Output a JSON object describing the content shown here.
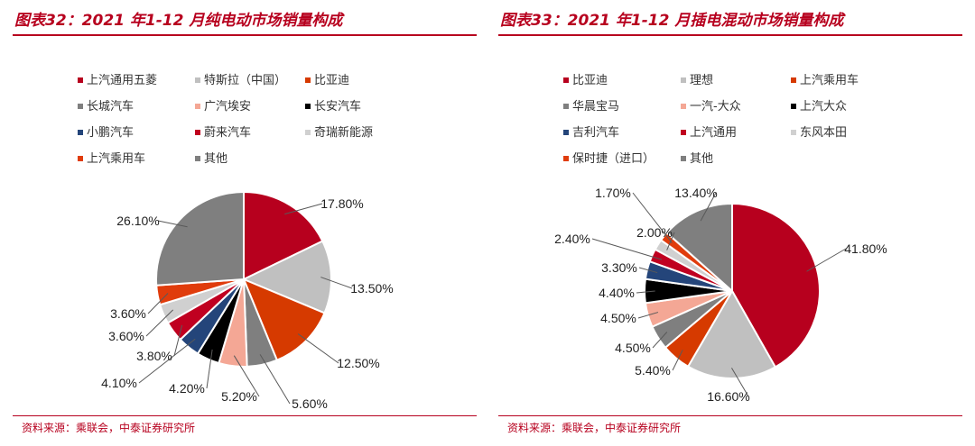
{
  "panels": [
    {
      "title": "图表32：2021 年1-12 月纯电动市场销量构成",
      "source": "资料来源：乘联会，中泰证券研究所",
      "legend": [
        {
          "label": "上汽通用五菱",
          "color": "#b7001e"
        },
        {
          "label": "特斯拉（中国）",
          "color": "#c0c0c0"
        },
        {
          "label": "比亚迪",
          "color": "#d63a00"
        },
        {
          "label": "长城汽车",
          "color": "#7f7f7f"
        },
        {
          "label": "广汽埃安",
          "color": "#f4a795"
        },
        {
          "label": "长安汽车",
          "color": "#000000"
        },
        {
          "label": "小鹏汽车",
          "color": "#24457a"
        },
        {
          "label": "蔚来汽车",
          "color": "#c00020"
        },
        {
          "label": "奇瑞新能源",
          "color": "#d0d0d0"
        },
        {
          "label": "上汽乘用车",
          "color": "#e03c0c"
        },
        {
          "label": "其他",
          "color": "#7f7f7f"
        }
      ],
      "chart_data": {
        "type": "pie",
        "title": "",
        "slices": [
          {
            "name": "上汽通用五菱",
            "value": 17.8,
            "label": "17.80%",
            "color": "#b7001e"
          },
          {
            "name": "特斯拉（中国）",
            "value": 13.5,
            "label": "13.50%",
            "color": "#c0c0c0"
          },
          {
            "name": "比亚迪",
            "value": 12.5,
            "label": "12.50%",
            "color": "#d63a00"
          },
          {
            "name": "长城汽车",
            "value": 5.6,
            "label": "5.60%",
            "color": "#7f7f7f"
          },
          {
            "name": "广汽埃安",
            "value": 5.2,
            "label": "5.20%",
            "color": "#f4a795"
          },
          {
            "name": "长安汽车",
            "value": 4.2,
            "label": "4.20%",
            "color": "#000000"
          },
          {
            "name": "小鹏汽车",
            "value": 4.1,
            "label": "4.10%",
            "color": "#24457a"
          },
          {
            "name": "蔚来汽车",
            "value": 3.8,
            "label": "3.80%",
            "color": "#c00020"
          },
          {
            "name": "奇瑞新能源",
            "value": 3.6,
            "label": "3.60%",
            "color": "#d0d0d0"
          },
          {
            "name": "上汽乘用车",
            "value": 3.6,
            "label": "3.60%",
            "color": "#e03c0c"
          },
          {
            "name": "其他",
            "value": 26.1,
            "label": "26.10%",
            "color": "#7f7f7f"
          }
        ]
      }
    },
    {
      "title": "图表33：2021 年1-12 月插电混动市场销量构成",
      "source": "资料来源：乘联会，中泰证券研究所",
      "legend": [
        {
          "label": "比亚迪",
          "color": "#b7001e"
        },
        {
          "label": "理想",
          "color": "#c0c0c0"
        },
        {
          "label": "上汽乘用车",
          "color": "#d63a00"
        },
        {
          "label": "华晨宝马",
          "color": "#7f7f7f"
        },
        {
          "label": "一汽-大众",
          "color": "#f4a795"
        },
        {
          "label": "上汽大众",
          "color": "#000000"
        },
        {
          "label": "吉利汽车",
          "color": "#24457a"
        },
        {
          "label": "上汽通用",
          "color": "#c00020"
        },
        {
          "label": "东风本田",
          "color": "#d0d0d0"
        },
        {
          "label": "保时捷（进口）",
          "color": "#e03c0c"
        },
        {
          "label": "其他",
          "color": "#7f7f7f"
        }
      ],
      "chart_data": {
        "type": "pie",
        "title": "",
        "slices": [
          {
            "name": "比亚迪",
            "value": 41.8,
            "label": "41.80%",
            "color": "#b7001e"
          },
          {
            "name": "理想",
            "value": 16.6,
            "label": "16.60%",
            "color": "#c0c0c0"
          },
          {
            "name": "上汽乘用车",
            "value": 5.4,
            "label": "5.40%",
            "color": "#d63a00"
          },
          {
            "name": "华晨宝马",
            "value": 4.5,
            "label": "4.50%",
            "color": "#7f7f7f"
          },
          {
            "name": "一汽-大众",
            "value": 4.5,
            "label": "4.50%",
            "color": "#f4a795"
          },
          {
            "name": "上汽大众",
            "value": 4.4,
            "label": "4.40%",
            "color": "#000000"
          },
          {
            "name": "吉利汽车",
            "value": 3.3,
            "label": "3.30%",
            "color": "#24457a"
          },
          {
            "name": "上汽通用",
            "value": 2.4,
            "label": "2.40%",
            "color": "#c00020"
          },
          {
            "name": "东风本田",
            "value": 2.0,
            "label": "2.00%",
            "color": "#d0d0d0"
          },
          {
            "name": "保时捷（进口）",
            "value": 1.7,
            "label": "1.70%",
            "color": "#e03c0c"
          },
          {
            "name": "其他",
            "value": 13.4,
            "label": "13.40%",
            "color": "#7f7f7f"
          }
        ]
      }
    }
  ]
}
